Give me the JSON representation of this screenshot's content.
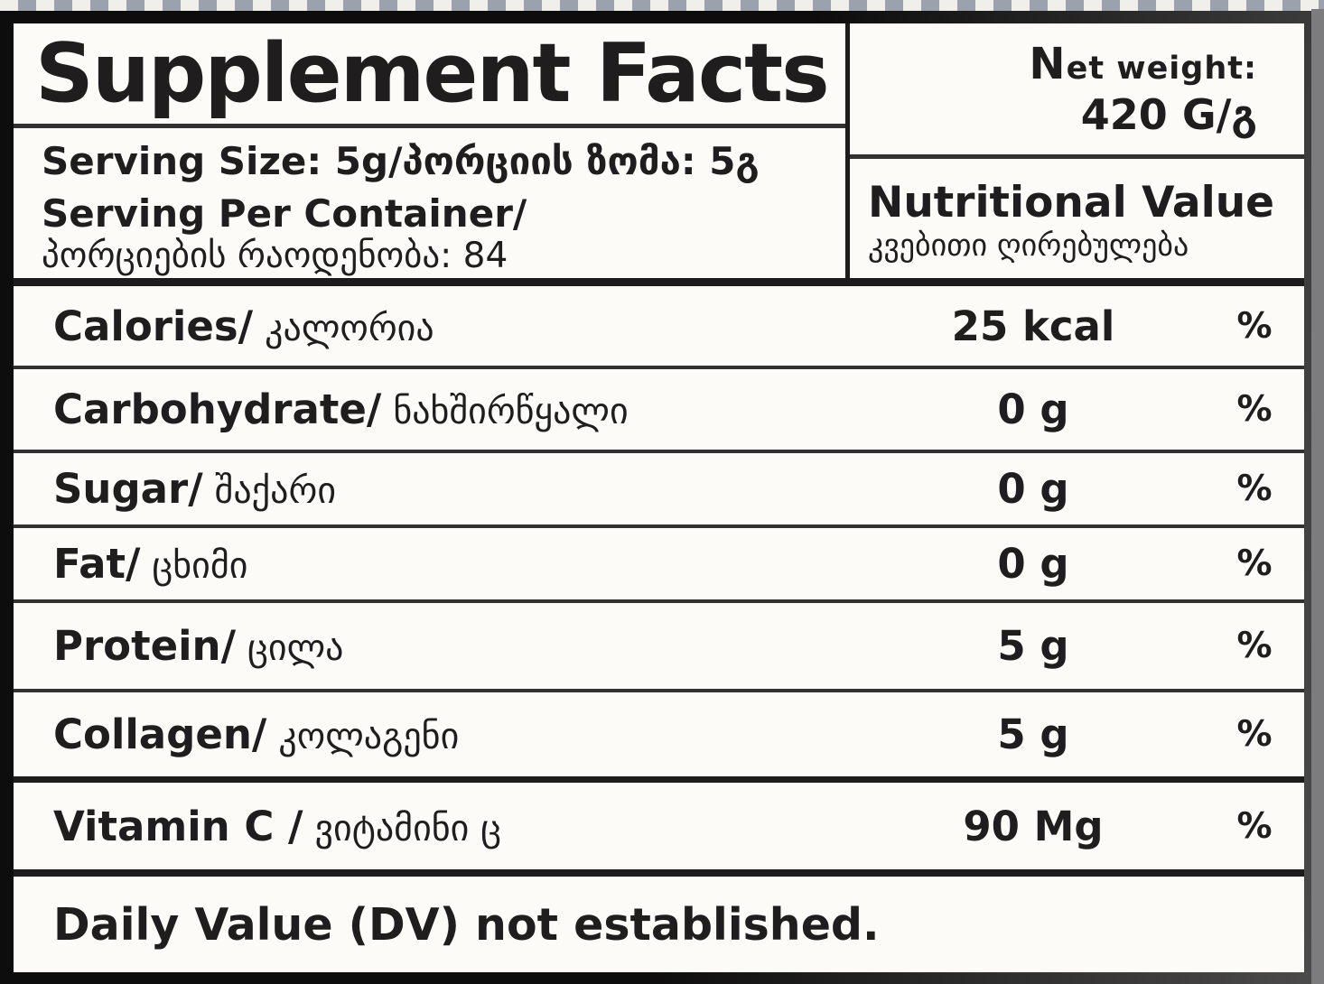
{
  "header": {
    "title": "Supplement Facts",
    "serving_size": "Serving Size: 5g/პორციის ზომა: 5გ",
    "serving_per_container_en": "Serving Per Container/",
    "serving_per_container_ka": "პორციების რაოდენობა: 84",
    "net_weight": {
      "label": "Net weight:",
      "value": "420 G/გ"
    },
    "nutritional_value": {
      "en": "Nutritional Value",
      "ka": "კვებითი ღირებულება"
    }
  },
  "rows": [
    {
      "name_en": "Calories/",
      "name_ka": "კალორია",
      "amount": "25 kcal",
      "dv": "%"
    },
    {
      "name_en": "Carbohydrate/",
      "name_ka": "ნახშირწყალი",
      "amount": "0 g",
      "dv": "%"
    },
    {
      "name_en": "Sugar/",
      "name_ka": "შაქარი",
      "amount": "0 g",
      "dv": "%"
    },
    {
      "name_en": "Fat/",
      "name_ka": "ცხიმი",
      "amount": "0 g",
      "dv": "%"
    },
    {
      "name_en": "Protein/",
      "name_ka": "ცილა",
      "amount": "5 g",
      "dv": "%"
    },
    {
      "name_en": "Collagen/",
      "name_ka": "კოლაგენი",
      "amount": "5 g",
      "dv": "%"
    },
    {
      "name_en": "Vitamin C /",
      "name_ka": "ვიტამინი ც",
      "amount": "90 Mg",
      "dv": "%"
    }
  ],
  "footer": {
    "note": "Daily Value (DV) not established."
  },
  "colors": {
    "label_bg": "#fcfbf8",
    "text": "#1f1d1d",
    "border": "#1d1b1b",
    "thin_line": "#323030",
    "stripe_gray": "#9aa2ad",
    "stripe_light": "#f0efe9",
    "side_strip": "#7c7c7e"
  }
}
